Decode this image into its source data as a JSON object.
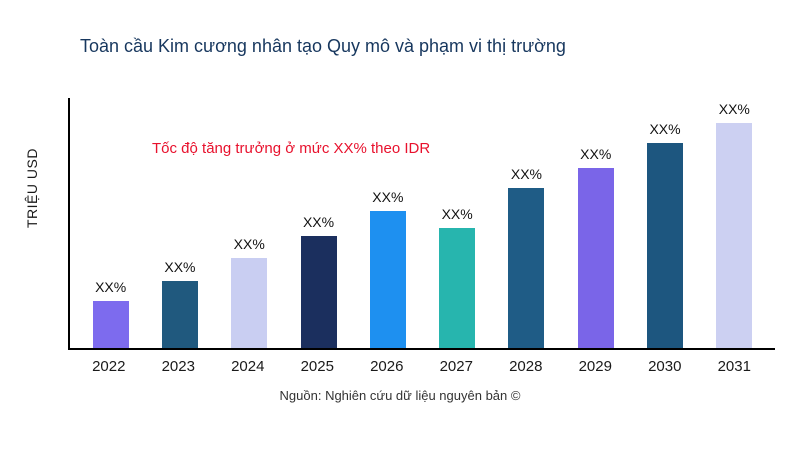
{
  "header": {
    "title": "Toàn cầu Kim cương nhân tạo Quy mô và phạm vi thị trường"
  },
  "footer": {
    "source": "Nguồn: Nghiên cứu dữ liệu nguyên bản ©"
  },
  "colors": {
    "title": "#17375e",
    "annotation": "#e8112d",
    "axis": "#000000"
  },
  "chart_data": {
    "type": "bar",
    "title": "Toàn cầu Kim cương nhân tạo Quy mô và phạm vi thị trường",
    "xlabel": "",
    "ylabel": "TRIỆU USD",
    "annotation": "Tốc độ tăng trưởng ở mức XX% theo IDR",
    "categories": [
      "2022",
      "2023",
      "2024",
      "2025",
      "2026",
      "2027",
      "2028",
      "2029",
      "2030",
      "2031"
    ],
    "values": [
      19,
      27,
      36,
      45,
      55,
      48,
      64,
      72,
      82,
      90
    ],
    "values_unit": "relative bar height, % of plot area (y-axis has no tick labels)",
    "bar_labels": [
      "XX%",
      "XX%",
      "XX%",
      "XX%",
      "XX%",
      "XX%",
      "XX%",
      "XX%",
      "XX%",
      "XX%"
    ],
    "bar_colors": [
      "#7d6bee",
      "#20597e",
      "#c9cef2",
      "#1b2f5e",
      "#1e90f0",
      "#27b5ae",
      "#1f5c86",
      "#7a65e8",
      "#1d567f",
      "#ccd0f2"
    ],
    "ylim": null,
    "grid": false,
    "legend": "none"
  }
}
